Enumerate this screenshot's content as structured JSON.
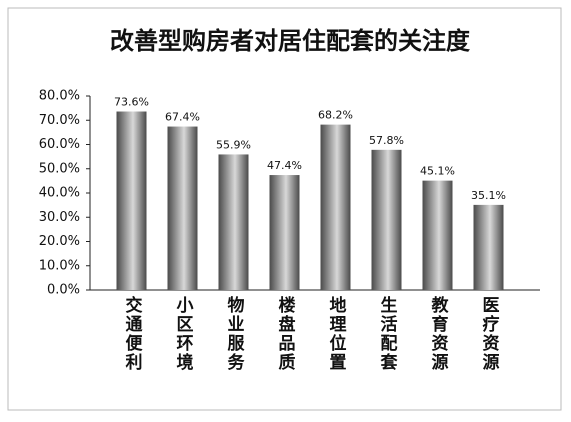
{
  "chart_data": {
    "type": "bar",
    "title": "改善型购房者对居住配套的关注度",
    "categories": [
      "交通便利",
      "小区环境",
      "物业服务",
      "楼盘品质",
      "地理位置",
      "生活配套",
      "教育资源",
      "医疗资源"
    ],
    "values": [
      73.6,
      67.4,
      55.9,
      47.4,
      68.2,
      57.8,
      45.1,
      35.1
    ],
    "value_labels": [
      "73.6%",
      "67.4%",
      "55.9%",
      "47.4%",
      "68.2%",
      "57.8%",
      "45.1%",
      "35.1%"
    ],
    "color": "#4a4a4a",
    "ylim": [
      0,
      80
    ],
    "yticks": [
      {
        "value": 0,
        "label": "0.0%"
      },
      {
        "value": 10,
        "label": "10.0%"
      },
      {
        "value": 20,
        "label": "20.0%"
      },
      {
        "value": 30,
        "label": "30.0%"
      },
      {
        "value": 40,
        "label": "40.0%"
      },
      {
        "value": 50,
        "label": "50.0%"
      },
      {
        "value": 60,
        "label": "60.0%"
      },
      {
        "value": 70,
        "label": "70.0%"
      },
      {
        "value": 80,
        "label": "80.0%"
      }
    ],
    "grid": false
  }
}
